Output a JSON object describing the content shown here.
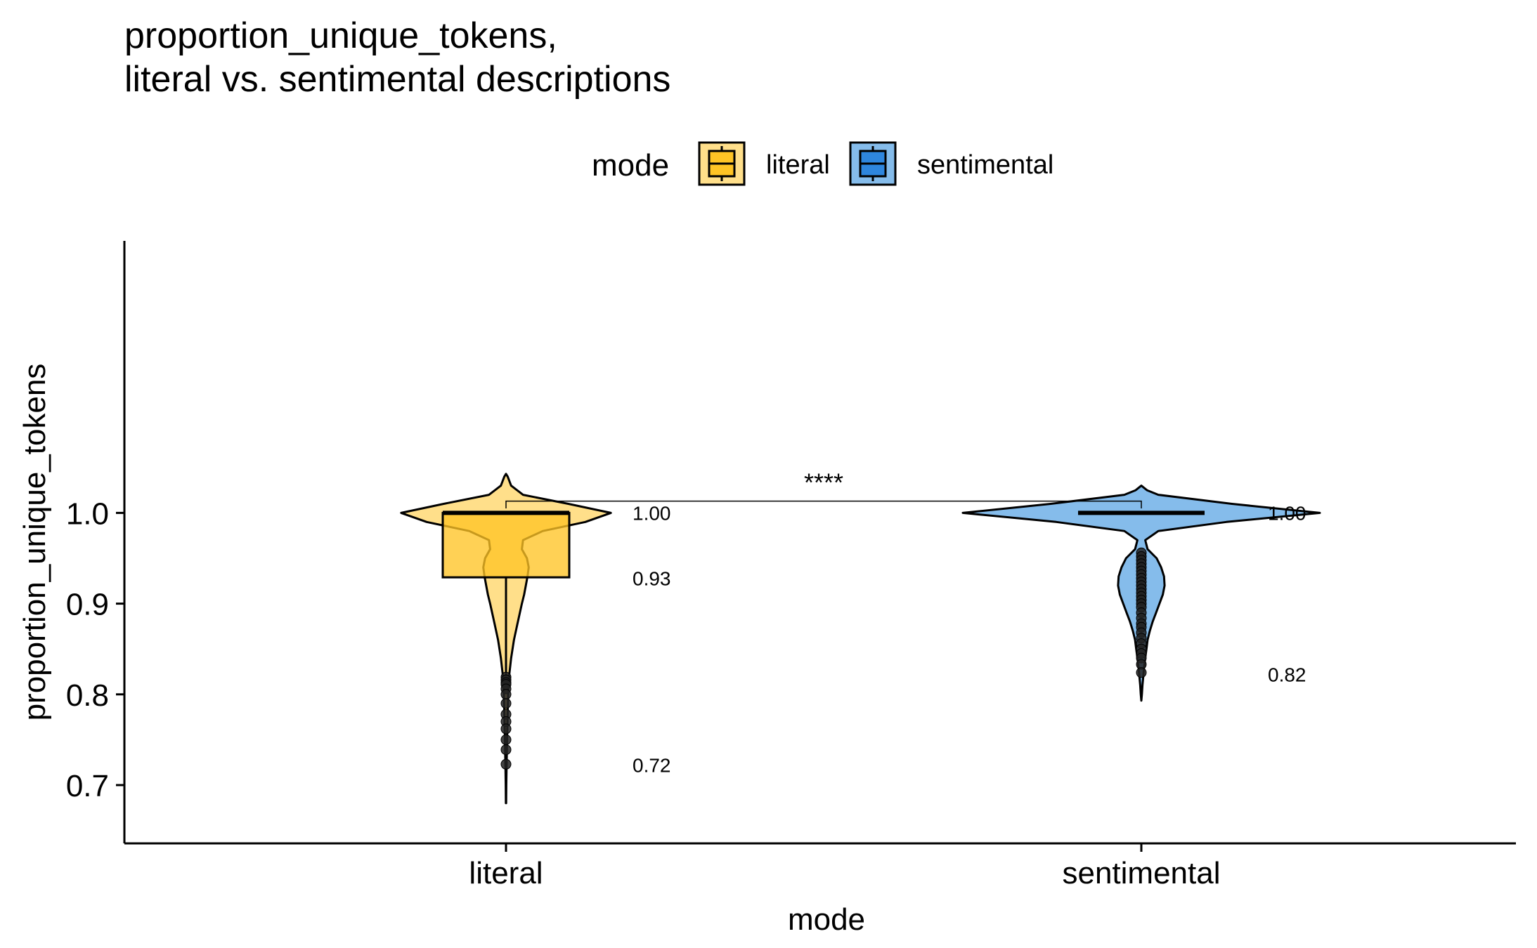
{
  "chart_data": {
    "type": "violin",
    "title_line1": "proportion_unique_tokens,",
    "title_line2": "literal vs. sentimental descriptions",
    "xlabel": "mode",
    "ylabel": "proportion_unique_tokens",
    "categories": [
      "literal",
      "sentimental"
    ],
    "ylim": [
      0.665,
      1.06
    ],
    "yticks": [
      {
        "value": 0.7,
        "label": "0.7"
      },
      {
        "value": 0.8,
        "label": "0.8"
      },
      {
        "value": 0.9,
        "label": "0.9"
      },
      {
        "value": 1.0,
        "label": "1.0"
      }
    ],
    "grid": false,
    "legend": {
      "title": "mode",
      "position": "top",
      "entries": [
        {
          "label": "literal",
          "color": "#FFC425"
        },
        {
          "label": "sentimental",
          "color": "#2E86DE"
        }
      ]
    },
    "series": [
      {
        "name": "literal",
        "fill": "#FFC425",
        "violin_fill": "#FFDF8A",
        "violin_range": [
          0.68,
          1.043
        ],
        "density": [
          [
            0.68,
            0.2
          ],
          [
            0.7,
            0.5
          ],
          [
            0.72,
            1
          ],
          [
            0.74,
            1.6
          ],
          [
            0.76,
            2.2
          ],
          [
            0.78,
            3
          ],
          [
            0.8,
            3.8
          ],
          [
            0.82,
            5.5
          ],
          [
            0.84,
            9
          ],
          [
            0.86,
            14
          ],
          [
            0.88,
            21
          ],
          [
            0.9,
            28
          ],
          [
            0.91,
            32
          ],
          [
            0.92,
            35
          ],
          [
            0.93,
            38
          ],
          [
            0.94,
            40
          ],
          [
            0.95,
            37
          ],
          [
            0.96,
            28
          ],
          [
            0.97,
            30
          ],
          [
            0.98,
            65
          ],
          [
            0.99,
            140
          ],
          [
            1.0,
            185
          ],
          [
            1.01,
            110
          ],
          [
            1.02,
            30
          ],
          [
            1.03,
            9
          ],
          [
            1.04,
            3
          ],
          [
            1.043,
            0
          ]
        ],
        "box": {
          "q1": 0.929,
          "median": 1.0,
          "q3": 1.0,
          "lower_whisker": 0.82,
          "upper_whisker": 1.0
        },
        "outliers": [
          0.819,
          0.816,
          0.813,
          0.811,
          0.806,
          0.8,
          0.79,
          0.778,
          0.77,
          0.762,
          0.75,
          0.739,
          0.723
        ],
        "labels": [
          {
            "value": 1.0,
            "text": "1.00"
          },
          {
            "value": 0.928,
            "text": "0.93"
          },
          {
            "value": 0.722,
            "text": "0.72"
          }
        ]
      },
      {
        "name": "sentimental",
        "fill": "#2E86DE",
        "violin_fill": "#85BCEB",
        "violin_range": [
          0.793,
          1.03
        ],
        "density": [
          [
            0.793,
            0
          ],
          [
            0.8,
            1
          ],
          [
            0.81,
            2
          ],
          [
            0.82,
            3.5
          ],
          [
            0.83,
            5
          ],
          [
            0.84,
            7
          ],
          [
            0.85,
            9
          ],
          [
            0.86,
            11
          ],
          [
            0.87,
            15
          ],
          [
            0.88,
            20
          ],
          [
            0.89,
            26
          ],
          [
            0.9,
            32
          ],
          [
            0.91,
            38
          ],
          [
            0.92,
            41
          ],
          [
            0.93,
            40
          ],
          [
            0.94,
            35
          ],
          [
            0.95,
            27
          ],
          [
            0.96,
            11
          ],
          [
            0.97,
            7
          ],
          [
            0.98,
            30
          ],
          [
            0.99,
            150
          ],
          [
            1.0,
            315
          ],
          [
            1.01,
            160
          ],
          [
            1.02,
            30
          ],
          [
            1.025,
            10
          ],
          [
            1.03,
            0
          ]
        ],
        "box": {
          "q1": 1.0,
          "median": 1.0,
          "q3": 1.0,
          "lower_whisker": 1.0,
          "upper_whisker": 1.0
        },
        "outliers": [
          0.956,
          0.952,
          0.948,
          0.944,
          0.94,
          0.936,
          0.932,
          0.928,
          0.924,
          0.92,
          0.916,
          0.912,
          0.908,
          0.904,
          0.9,
          0.896,
          0.89,
          0.884,
          0.878,
          0.874,
          0.868,
          0.862,
          0.856,
          0.85,
          0.845,
          0.84,
          0.833,
          0.824
        ],
        "labels": [
          {
            "value": 1.0,
            "text": "1.00"
          },
          {
            "value": 0.822,
            "text": "0.82"
          }
        ]
      }
    ],
    "significance": {
      "label": "****",
      "value": 1.013,
      "tick_to": 1.005
    }
  }
}
